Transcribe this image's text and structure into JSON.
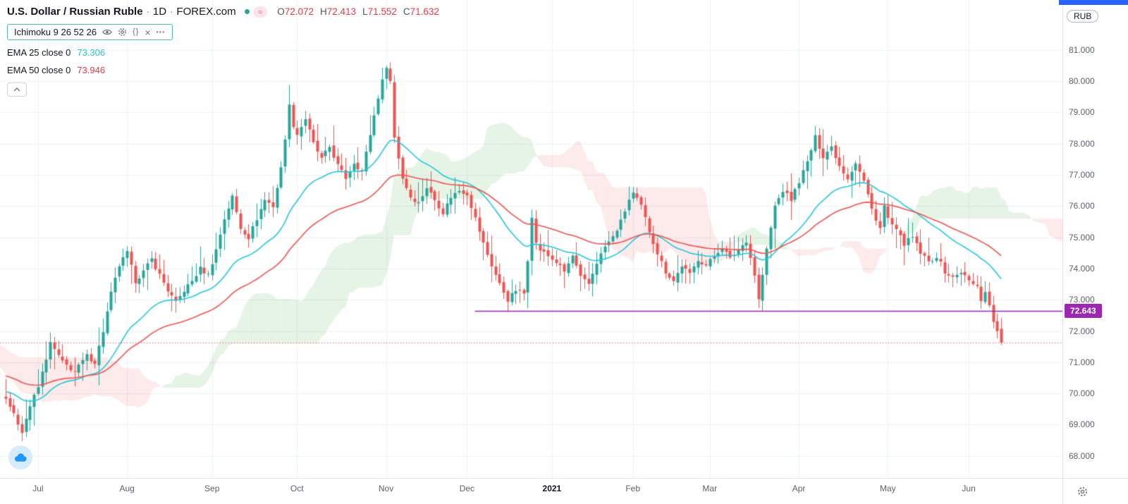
{
  "header": {
    "symbol": "U.S. Dollar / Russian Ruble",
    "separator": "·",
    "interval": "1D",
    "exchange": "FOREX.com",
    "approx_glyph": "≈",
    "ohlc": {
      "o_label": "O",
      "o": "72.072",
      "h_label": "H",
      "h": "72.413",
      "l_label": "L",
      "l": "71.552",
      "c_label": "C",
      "c": "71.632"
    }
  },
  "legend": {
    "ichimoku": {
      "label": "Ichimoku 9 26 52 26",
      "braces_glyph": "{}",
      "close_glyph": "×",
      "more_glyph": "•••"
    },
    "ema25": {
      "label": "EMA 25 close 0",
      "value": "73.306"
    },
    "ema50": {
      "label": "EMA 50 close 0",
      "value": "73.946"
    }
  },
  "price_axis": {
    "currency": "RUB",
    "tag": {
      "value": "72.643",
      "color": "#9c27b0"
    }
  },
  "chart_data": {
    "type": "candlestick",
    "title": "U.S. Dollar / Russian Ruble",
    "symbol": "USD/RUB",
    "interval": "1D",
    "source": "FOREX.com",
    "ylabel": "RUB",
    "ylim": [
      67.25,
      82.6
    ],
    "days_visible": 247,
    "y_ticks": [
      "81.000",
      "80.000",
      "79.000",
      "78.000",
      "77.000",
      "76.000",
      "75.000",
      "74.000",
      "73.000",
      "72.000",
      "71.000",
      "70.000",
      "69.000",
      "68.000"
    ],
    "x_ticks": [
      {
        "text": "Jul",
        "day": 8
      },
      {
        "text": "Aug",
        "day": 30
      },
      {
        "text": "Sep",
        "day": 51
      },
      {
        "text": "Oct",
        "day": 72
      },
      {
        "text": "Nov",
        "day": 94
      },
      {
        "text": "Dec",
        "day": 114
      },
      {
        "text": "2021",
        "day": 135,
        "bold": true
      },
      {
        "text": "Feb",
        "day": 155
      },
      {
        "text": "Mar",
        "day": 174
      },
      {
        "text": "Apr",
        "day": 196
      },
      {
        "text": "May",
        "day": 218
      },
      {
        "text": "Jun",
        "day": 238
      }
    ],
    "close_anchors": [
      [
        -52,
        73.5
      ],
      [
        -46,
        72.8
      ],
      [
        -40,
        71.8
      ],
      [
        -34,
        70.5
      ],
      [
        -28,
        69.3
      ],
      [
        -22,
        68.7
      ],
      [
        -16,
        69.6
      ],
      [
        -10,
        70.6
      ],
      [
        -6,
        70.2
      ],
      [
        -3,
        70.0
      ],
      [
        0,
        69.9
      ],
      [
        2,
        69.3
      ],
      [
        4,
        68.8
      ],
      [
        6,
        69.6
      ],
      [
        8,
        70.2
      ],
      [
        11,
        71.6
      ],
      [
        14,
        71.0
      ],
      [
        17,
        70.7
      ],
      [
        20,
        71.2
      ],
      [
        22,
        71.0
      ],
      [
        24,
        72.0
      ],
      [
        26,
        73.2
      ],
      [
        28,
        74.1
      ],
      [
        30,
        74.5
      ],
      [
        32,
        73.6
      ],
      [
        34,
        73.9
      ],
      [
        36,
        74.3
      ],
      [
        38,
        73.8
      ],
      [
        40,
        73.3
      ],
      [
        42,
        72.9
      ],
      [
        44,
        73.3
      ],
      [
        46,
        73.6
      ],
      [
        48,
        74.0
      ],
      [
        50,
        73.8
      ],
      [
        52,
        74.6
      ],
      [
        54,
        75.6
      ],
      [
        56,
        76.3
      ],
      [
        58,
        75.3
      ],
      [
        60,
        75.0
      ],
      [
        62,
        75.6
      ],
      [
        64,
        76.2
      ],
      [
        66,
        76.0
      ],
      [
        68,
        77.2
      ],
      [
        70,
        79.2
      ],
      [
        71,
        78.6
      ],
      [
        72,
        78.3
      ],
      [
        74,
        78.8
      ],
      [
        76,
        78.0
      ],
      [
        78,
        77.5
      ],
      [
        80,
        77.9
      ],
      [
        82,
        77.3
      ],
      [
        84,
        76.9
      ],
      [
        86,
        77.4
      ],
      [
        88,
        77.1
      ],
      [
        90,
        78.3
      ],
      [
        92,
        79.5
      ],
      [
        94,
        80.5
      ],
      [
        95,
        80.0
      ],
      [
        96,
        78.2
      ],
      [
        98,
        76.9
      ],
      [
        100,
        76.3
      ],
      [
        102,
        76.1
      ],
      [
        104,
        76.6
      ],
      [
        106,
        76.2
      ],
      [
        108,
        75.8
      ],
      [
        110,
        76.3
      ],
      [
        112,
        76.5
      ],
      [
        114,
        76.4
      ],
      [
        116,
        75.6
      ],
      [
        118,
        74.8
      ],
      [
        120,
        74.1
      ],
      [
        122,
        73.5
      ],
      [
        124,
        73.0
      ],
      [
        126,
        73.3
      ],
      [
        128,
        73.2
      ],
      [
        129,
        74.3
      ],
      [
        130,
        75.7
      ],
      [
        131,
        74.8
      ],
      [
        132,
        74.6
      ],
      [
        134,
        74.4
      ],
      [
        136,
        74.2
      ],
      [
        138,
        73.9
      ],
      [
        140,
        74.4
      ],
      [
        142,
        73.7
      ],
      [
        144,
        73.5
      ],
      [
        146,
        74.2
      ],
      [
        148,
        74.7
      ],
      [
        150,
        75.0
      ],
      [
        152,
        75.5
      ],
      [
        154,
        76.2
      ],
      [
        155,
        76.4
      ],
      [
        157,
        76.0
      ],
      [
        159,
        75.2
      ],
      [
        161,
        74.5
      ],
      [
        163,
        73.9
      ],
      [
        165,
        73.6
      ],
      [
        167,
        74.1
      ],
      [
        169,
        73.8
      ],
      [
        171,
        74.3
      ],
      [
        173,
        74.1
      ],
      [
        175,
        74.4
      ],
      [
        177,
        74.7
      ],
      [
        179,
        74.3
      ],
      [
        181,
        74.6
      ],
      [
        183,
        74.9
      ],
      [
        185,
        73.8
      ],
      [
        186,
        73.0
      ],
      [
        188,
        74.6
      ],
      [
        190,
        76.0
      ],
      [
        192,
        76.5
      ],
      [
        194,
        76.2
      ],
      [
        196,
        76.8
      ],
      [
        198,
        77.4
      ],
      [
        200,
        78.2
      ],
      [
        202,
        77.6
      ],
      [
        204,
        77.9
      ],
      [
        206,
        77.3
      ],
      [
        208,
        76.9
      ],
      [
        210,
        77.4
      ],
      [
        212,
        76.8
      ],
      [
        214,
        75.9
      ],
      [
        216,
        75.3
      ],
      [
        217,
        76.0
      ],
      [
        218,
        75.6
      ],
      [
        220,
        75.2
      ],
      [
        222,
        74.8
      ],
      [
        224,
        75.0
      ],
      [
        226,
        74.5
      ],
      [
        228,
        74.2
      ],
      [
        230,
        74.4
      ],
      [
        232,
        73.9
      ],
      [
        234,
        73.7
      ],
      [
        236,
        73.9
      ],
      [
        238,
        73.6
      ],
      [
        240,
        73.4
      ],
      [
        241,
        73.0
      ],
      [
        242,
        73.3
      ],
      [
        243,
        72.8
      ],
      [
        244,
        72.3
      ],
      [
        245,
        72.05
      ],
      [
        246,
        71.632
      ]
    ],
    "last_candle": {
      "open": 72.072,
      "high": 72.413,
      "low": 71.552,
      "close": 71.632
    },
    "indicators": {
      "ichimoku": {
        "params": [
          9,
          26,
          52,
          26
        ],
        "cloud_bull_color": "rgba(76,175,80,0.14)",
        "cloud_bear_color": "rgba(239,83,80,0.12)"
      },
      "ema25": {
        "period": 25,
        "last": 73.306,
        "color": "#26c6da"
      },
      "ema50": {
        "period": 50,
        "last": 73.946,
        "color": "#ef5350"
      }
    },
    "overlays": {
      "horizontal_ray": {
        "price": 72.643,
        "start_day": 116,
        "color": "#9c27b0"
      },
      "last_price_line": {
        "price": 71.632,
        "style": "dotted",
        "color": "#f23645"
      }
    },
    "colors": {
      "up": "#26a69a",
      "down": "#ef5350",
      "grid": "#eef1f6"
    }
  }
}
